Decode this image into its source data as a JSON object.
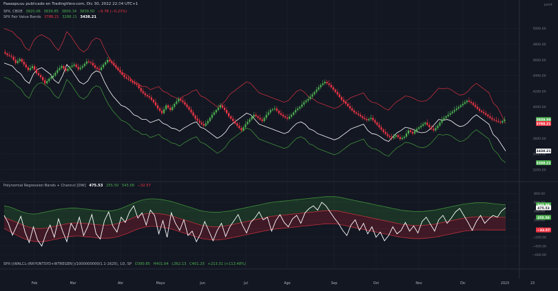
{
  "header": {
    "title": "Faaaapuuu publicado en TradingView.com, Dic 30, 2022 22:34 UTC+1"
  },
  "main_legend": {
    "symbol": "SPX, CBOE",
    "o": "3829.06",
    "h": "3839.85",
    "l": "3800.34",
    "c": "3839.50",
    "chg": "−9.78 (−0.25%)"
  },
  "indicator1": {
    "name": "SPX Fair Value Bands",
    "v1": "3788.21",
    "v2": "3288.21",
    "v3": "3438.21"
  },
  "indicator2": {
    "name": "Polynomial Regression Bands + Channel [DW]",
    "v1": "475.53",
    "v2": "255.50",
    "v3": "543.58",
    "v4": "−32.57"
  },
  "indicator3": {
    "name": "SPX-((WALCL-(RRPONTSYD+WTREGEN))/1000000000/1.1-1625), 1D, SP",
    "o": "O390.85",
    "h": "H401.64",
    "l": "L362.13",
    "c": "C401.28",
    "chg": "+213.31 (+113.48%)"
  },
  "colors": {
    "bg": "#131722",
    "up": "#4caf50",
    "down": "#f23645",
    "grid": "#1e222d",
    "axis": "#787b86"
  },
  "chart_data": [
    {
      "type": "candlestick",
      "title": "SPX, CBOE",
      "unit_label": "point",
      "y_ticks": [
        "5000.00",
        "4800.00",
        "4600.00",
        "4400.00",
        "4200.00",
        "4000.00",
        "3600.00",
        "3400.00",
        "3200.00"
      ],
      "ylim": [
        3100,
        5100
      ],
      "x_ticks": [
        "Feb",
        "Mar",
        "Abr",
        "Mayo",
        "Jun",
        "Jul",
        "Ago",
        "Sep",
        "Oct",
        "Nov",
        "Dic",
        "2023",
        "23"
      ],
      "price_labels": [
        {
          "text": "3839.50",
          "value": 3839.5,
          "color": "#4caf50"
        },
        {
          "text": "3788.21",
          "value": 3788.21,
          "color": "#f23645"
        },
        {
          "text": "3438.21",
          "value": 3438.21,
          "color": "#ffffff"
        },
        {
          "text": "3288.21",
          "value": 3288.21,
          "color": "#4caf50"
        }
      ],
      "close_path": [
        4700,
        4660,
        4640,
        4560,
        4610,
        4540,
        4470,
        4520,
        4430,
        4380,
        4300,
        4360,
        4400,
        4470,
        4520,
        4460,
        4510,
        4540,
        4480,
        4520,
        4580,
        4560,
        4500,
        4470,
        4540,
        4600,
        4560,
        4500,
        4440,
        4380,
        4350,
        4310,
        4280,
        4200,
        4150,
        4120,
        4060,
        3980,
        3920,
        4020,
        3960,
        4040,
        4100,
        4060,
        4000,
        3930,
        3850,
        3800,
        3760,
        3820,
        3900,
        3960,
        4020,
        3960,
        3880,
        3820,
        3760,
        3700,
        3780,
        3840,
        3900,
        3860,
        3820,
        3900,
        3960,
        3980,
        3920,
        3880,
        3850,
        3900,
        3960,
        4000,
        4060,
        4100,
        4160,
        4220,
        4280,
        4320,
        4280,
        4220,
        4160,
        4090,
        4040,
        3980,
        3930,
        3900,
        3860,
        3830,
        3860,
        3800,
        3740,
        3680,
        3630,
        3600,
        3640,
        3590,
        3620,
        3700,
        3660,
        3720,
        3760,
        3800,
        3740,
        3700,
        3760,
        3840,
        3880,
        3920,
        3960,
        4000,
        4040,
        4080,
        4050,
        4000,
        3950,
        3920,
        3880,
        3840,
        3820,
        3800,
        3840
      ],
      "fair_value_upper": [
        5000,
        4980,
        4960,
        4900,
        4860,
        4760,
        4720,
        4840,
        4900,
        4920,
        4890,
        4860,
        4780,
        4720,
        4820,
        4960,
        4900,
        4820,
        4740,
        4700,
        4740,
        4840,
        4880,
        4860,
        4740,
        4640,
        4560,
        4500,
        4440,
        4420,
        4380,
        4320,
        4300,
        4260,
        4260,
        4220,
        4240,
        4260,
        4200,
        4180,
        4140,
        4120,
        4100,
        4140,
        4160,
        4200,
        4220,
        4140,
        4120,
        4080,
        4040,
        4000,
        4030,
        4080,
        4160,
        4200,
        4240,
        4280,
        4320,
        4300,
        4240,
        4180,
        4160,
        4140,
        4120,
        4100,
        4080,
        4060,
        4080,
        4140,
        4200,
        4220,
        4180,
        4120,
        4100,
        4060,
        4040,
        4020,
        4000,
        3980,
        4000,
        4040,
        4080,
        4120,
        4140,
        4160,
        4180,
        4100,
        4060,
        4050,
        4020,
        3980,
        3960,
        4020,
        4070,
        4100,
        4140,
        4130,
        4110,
        4080,
        4070,
        4080,
        4120,
        4180,
        4240,
        4230,
        4240,
        4220,
        4180,
        4150,
        4160,
        4200,
        4260,
        4300,
        4260,
        4220,
        4180,
        4050,
        4000,
        3900,
        3788
      ],
      "fair_value_mid": [
        4560,
        4540,
        4520,
        4460,
        4420,
        4340,
        4300,
        4420,
        4480,
        4500,
        4460,
        4420,
        4340,
        4300,
        4400,
        4540,
        4480,
        4400,
        4320,
        4290,
        4330,
        4420,
        4460,
        4440,
        4320,
        4220,
        4140,
        4080,
        4020,
        4000,
        3960,
        3900,
        3880,
        3840,
        3840,
        3800,
        3820,
        3840,
        3790,
        3770,
        3730,
        3720,
        3690,
        3730,
        3760,
        3790,
        3810,
        3740,
        3720,
        3680,
        3640,
        3600,
        3630,
        3680,
        3760,
        3800,
        3840,
        3880,
        3920,
        3900,
        3840,
        3780,
        3760,
        3740,
        3720,
        3700,
        3680,
        3660,
        3680,
        3740,
        3790,
        3810,
        3780,
        3720,
        3700,
        3660,
        3640,
        3620,
        3600,
        3580,
        3600,
        3640,
        3680,
        3720,
        3740,
        3760,
        3780,
        3700,
        3660,
        3650,
        3620,
        3580,
        3560,
        3620,
        3670,
        3700,
        3740,
        3730,
        3710,
        3680,
        3670,
        3680,
        3720,
        3780,
        3840,
        3830,
        3840,
        3820,
        3780,
        3750,
        3760,
        3800,
        3860,
        3900,
        3860,
        3820,
        3780,
        3650,
        3600,
        3520,
        3438
      ],
      "fair_value_lower": [
        4380,
        4360,
        4330,
        4270,
        4230,
        4150,
        4110,
        4230,
        4290,
        4310,
        4270,
        4230,
        4150,
        4110,
        4210,
        4350,
        4290,
        4210,
        4130,
        4100,
        4140,
        4230,
        4270,
        4250,
        4130,
        4030,
        3950,
        3890,
        3830,
        3810,
        3770,
        3710,
        3690,
        3650,
        3650,
        3610,
        3630,
        3650,
        3600,
        3580,
        3540,
        3530,
        3500,
        3540,
        3570,
        3600,
        3620,
        3550,
        3530,
        3490,
        3450,
        3410,
        3440,
        3490,
        3570,
        3610,
        3650,
        3690,
        3730,
        3710,
        3650,
        3590,
        3570,
        3550,
        3530,
        3510,
        3490,
        3470,
        3490,
        3550,
        3600,
        3620,
        3590,
        3530,
        3510,
        3470,
        3450,
        3430,
        3410,
        3390,
        3410,
        3450,
        3490,
        3530,
        3550,
        3570,
        3590,
        3510,
        3470,
        3460,
        3430,
        3390,
        3370,
        3430,
        3480,
        3510,
        3550,
        3540,
        3520,
        3490,
        3480,
        3490,
        3530,
        3590,
        3650,
        3640,
        3650,
        3630,
        3590,
        3560,
        3570,
        3610,
        3670,
        3710,
        3670,
        3630,
        3590,
        3460,
        3410,
        3330,
        3288
      ]
    },
    {
      "type": "line",
      "title": "Polynomial Regression Bands + Channel [DW]",
      "y_ticks": [
        "800.00",
        "600.00",
        "400.00",
        "200.00",
        "0.00",
        "−200.00",
        "−400.00",
        "−600.00"
      ],
      "ylim": [
        -720,
        900
      ],
      "price_labels": [
        {
          "text": "543.58",
          "value": 543.58,
          "color": "#4caf50"
        },
        {
          "text": "475.53",
          "value": 475.53,
          "color": "#ffffff"
        },
        {
          "text": "255.50",
          "value": 255.5,
          "color": "#4caf50"
        },
        {
          "text": "−32.57",
          "value": -32.57,
          "color": "#f23645"
        }
      ],
      "band_upper": [
        520,
        500,
        470,
        430,
        390,
        360,
        340,
        330,
        340,
        360,
        380,
        400,
        420,
        440,
        450,
        460,
        470,
        470,
        460,
        450,
        440,
        430,
        420,
        410,
        400,
        400,
        410,
        430,
        460,
        500,
        540,
        580,
        620,
        650,
        670,
        680,
        680,
        670,
        660,
        640,
        620,
        590,
        560,
        530,
        500,
        470,
        440,
        410,
        390,
        380,
        370,
        370,
        380,
        390,
        400,
        420,
        440,
        460,
        480,
        500,
        520,
        540,
        560,
        580,
        600,
        610,
        620,
        630,
        640,
        650,
        660,
        670,
        680,
        690,
        700,
        710,
        720,
        730,
        730,
        730,
        720,
        700,
        680,
        660,
        640,
        620,
        600,
        580,
        560,
        540,
        520,
        500,
        480,
        460,
        440,
        420,
        410,
        400,
        390,
        390,
        390,
        400,
        410,
        420,
        440,
        460,
        480,
        500,
        520,
        540,
        560,
        570,
        580,
        590,
        590,
        590,
        580,
        570,
        560,
        550,
        543
      ],
      "band_mid": [
        260,
        220,
        180,
        140,
        100,
        60,
        30,
        10,
        0,
        0,
        10,
        30,
        50,
        70,
        90,
        110,
        120,
        130,
        130,
        120,
        110,
        100,
        90,
        80,
        80,
        80,
        90,
        110,
        140,
        170,
        210,
        250,
        290,
        320,
        340,
        350,
        350,
        340,
        330,
        310,
        290,
        260,
        230,
        200,
        170,
        140,
        110,
        80,
        60,
        50,
        40,
        40,
        50,
        60,
        80,
        100,
        120,
        140,
        160,
        180,
        200,
        220,
        240,
        260,
        280,
        290,
        300,
        310,
        320,
        330,
        340,
        350,
        360,
        370,
        380,
        390,
        400,
        410,
        410,
        410,
        400,
        380,
        360,
        340,
        320,
        300,
        280,
        260,
        240,
        220,
        200,
        180,
        160,
        140,
        120,
        100,
        90,
        80,
        70,
        70,
        70,
        80,
        90,
        100,
        120,
        140,
        160,
        180,
        200,
        220,
        240,
        250,
        260,
        270,
        270,
        270,
        265,
        260,
        258,
        256,
        255
      ],
      "band_lower": [
        0,
        -50,
        -100,
        -150,
        -200,
        -240,
        -270,
        -290,
        -300,
        -300,
        -290,
        -270,
        -250,
        -230,
        -210,
        -190,
        -180,
        -170,
        -170,
        -180,
        -190,
        -200,
        -210,
        -220,
        -220,
        -220,
        -210,
        -190,
        -160,
        -130,
        -90,
        -50,
        -10,
        20,
        40,
        50,
        50,
        40,
        30,
        10,
        -10,
        -40,
        -70,
        -100,
        -130,
        -160,
        -190,
        -220,
        -240,
        -250,
        -260,
        -260,
        -250,
        -240,
        -220,
        -200,
        -180,
        -160,
        -140,
        -120,
        -100,
        -80,
        -60,
        -40,
        -20,
        -10,
        0,
        10,
        20,
        30,
        40,
        50,
        60,
        70,
        80,
        90,
        100,
        110,
        110,
        110,
        100,
        80,
        60,
        40,
        20,
        0,
        -20,
        -40,
        -60,
        -80,
        -100,
        -120,
        -140,
        -160,
        -180,
        -200,
        -210,
        -220,
        -230,
        -230,
        -230,
        -220,
        -210,
        -200,
        -180,
        -160,
        -140,
        -120,
        -100,
        -80,
        -60,
        -50,
        -40,
        -30,
        -30,
        -30,
        -32,
        -33,
        -33,
        -33,
        -33
      ],
      "oscillator": [
        300,
        120,
        -150,
        60,
        280,
        -80,
        -320,
        40,
        -260,
        -400,
        -120,
        80,
        -200,
        220,
        -60,
        -300,
        120,
        -40,
        260,
        -160,
        40,
        320,
        -120,
        -240,
        180,
        380,
        60,
        -80,
        260,
        140,
        380,
        520,
        240,
        360,
        80,
        420,
        300,
        -120,
        180,
        -200,
        360,
        120,
        -40,
        200,
        -160,
        -60,
        -300,
        -120,
        160,
        -60,
        -280,
        -40,
        120,
        -180,
        40,
        180,
        320,
        80,
        -100,
        140,
        240,
        380,
        200,
        260,
        -60,
        180,
        320,
        140,
        40,
        220,
        300,
        120,
        360,
        460,
        520,
        420,
        600,
        520,
        380,
        240,
        120,
        -40,
        -160,
        80,
        200,
        -40,
        120,
        -120,
        40,
        -200,
        -80,
        -280,
        -160,
        40,
        -120,
        -40,
        140,
        -60,
        60,
        -100,
        160,
        260,
        100,
        -60,
        200,
        300,
        120,
        240,
        380,
        460,
        300,
        140,
        -40,
        160,
        300,
        120,
        220,
        300,
        260,
        400,
        475
      ],
      "zero_line": 0
    }
  ]
}
